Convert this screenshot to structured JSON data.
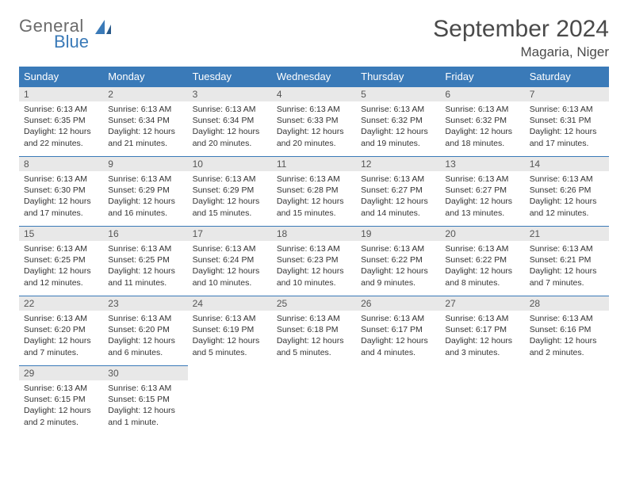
{
  "colors": {
    "header_bg": "#3a7ab8",
    "header_text": "#ffffff",
    "daynum_bg": "#e8e8e8",
    "row_border": "#3a7ab8",
    "logo_gray": "#6b6b6b",
    "logo_blue": "#3a7ab8",
    "text": "#333333"
  },
  "logo": {
    "part1": "General",
    "part2": "Blue"
  },
  "title": "September 2024",
  "location": "Magaria, Niger",
  "weekdays": [
    "Sunday",
    "Monday",
    "Tuesday",
    "Wednesday",
    "Thursday",
    "Friday",
    "Saturday"
  ],
  "weeks": [
    [
      {
        "n": "1",
        "sr": "Sunrise: 6:13 AM",
        "ss": "Sunset: 6:35 PM",
        "d1": "Daylight: 12 hours",
        "d2": "and 22 minutes."
      },
      {
        "n": "2",
        "sr": "Sunrise: 6:13 AM",
        "ss": "Sunset: 6:34 PM",
        "d1": "Daylight: 12 hours",
        "d2": "and 21 minutes."
      },
      {
        "n": "3",
        "sr": "Sunrise: 6:13 AM",
        "ss": "Sunset: 6:34 PM",
        "d1": "Daylight: 12 hours",
        "d2": "and 20 minutes."
      },
      {
        "n": "4",
        "sr": "Sunrise: 6:13 AM",
        "ss": "Sunset: 6:33 PM",
        "d1": "Daylight: 12 hours",
        "d2": "and 20 minutes."
      },
      {
        "n": "5",
        "sr": "Sunrise: 6:13 AM",
        "ss": "Sunset: 6:32 PM",
        "d1": "Daylight: 12 hours",
        "d2": "and 19 minutes."
      },
      {
        "n": "6",
        "sr": "Sunrise: 6:13 AM",
        "ss": "Sunset: 6:32 PM",
        "d1": "Daylight: 12 hours",
        "d2": "and 18 minutes."
      },
      {
        "n": "7",
        "sr": "Sunrise: 6:13 AM",
        "ss": "Sunset: 6:31 PM",
        "d1": "Daylight: 12 hours",
        "d2": "and 17 minutes."
      }
    ],
    [
      {
        "n": "8",
        "sr": "Sunrise: 6:13 AM",
        "ss": "Sunset: 6:30 PM",
        "d1": "Daylight: 12 hours",
        "d2": "and 17 minutes."
      },
      {
        "n": "9",
        "sr": "Sunrise: 6:13 AM",
        "ss": "Sunset: 6:29 PM",
        "d1": "Daylight: 12 hours",
        "d2": "and 16 minutes."
      },
      {
        "n": "10",
        "sr": "Sunrise: 6:13 AM",
        "ss": "Sunset: 6:29 PM",
        "d1": "Daylight: 12 hours",
        "d2": "and 15 minutes."
      },
      {
        "n": "11",
        "sr": "Sunrise: 6:13 AM",
        "ss": "Sunset: 6:28 PM",
        "d1": "Daylight: 12 hours",
        "d2": "and 15 minutes."
      },
      {
        "n": "12",
        "sr": "Sunrise: 6:13 AM",
        "ss": "Sunset: 6:27 PM",
        "d1": "Daylight: 12 hours",
        "d2": "and 14 minutes."
      },
      {
        "n": "13",
        "sr": "Sunrise: 6:13 AM",
        "ss": "Sunset: 6:27 PM",
        "d1": "Daylight: 12 hours",
        "d2": "and 13 minutes."
      },
      {
        "n": "14",
        "sr": "Sunrise: 6:13 AM",
        "ss": "Sunset: 6:26 PM",
        "d1": "Daylight: 12 hours",
        "d2": "and 12 minutes."
      }
    ],
    [
      {
        "n": "15",
        "sr": "Sunrise: 6:13 AM",
        "ss": "Sunset: 6:25 PM",
        "d1": "Daylight: 12 hours",
        "d2": "and 12 minutes."
      },
      {
        "n": "16",
        "sr": "Sunrise: 6:13 AM",
        "ss": "Sunset: 6:25 PM",
        "d1": "Daylight: 12 hours",
        "d2": "and 11 minutes."
      },
      {
        "n": "17",
        "sr": "Sunrise: 6:13 AM",
        "ss": "Sunset: 6:24 PM",
        "d1": "Daylight: 12 hours",
        "d2": "and 10 minutes."
      },
      {
        "n": "18",
        "sr": "Sunrise: 6:13 AM",
        "ss": "Sunset: 6:23 PM",
        "d1": "Daylight: 12 hours",
        "d2": "and 10 minutes."
      },
      {
        "n": "19",
        "sr": "Sunrise: 6:13 AM",
        "ss": "Sunset: 6:22 PM",
        "d1": "Daylight: 12 hours",
        "d2": "and 9 minutes."
      },
      {
        "n": "20",
        "sr": "Sunrise: 6:13 AM",
        "ss": "Sunset: 6:22 PM",
        "d1": "Daylight: 12 hours",
        "d2": "and 8 minutes."
      },
      {
        "n": "21",
        "sr": "Sunrise: 6:13 AM",
        "ss": "Sunset: 6:21 PM",
        "d1": "Daylight: 12 hours",
        "d2": "and 7 minutes."
      }
    ],
    [
      {
        "n": "22",
        "sr": "Sunrise: 6:13 AM",
        "ss": "Sunset: 6:20 PM",
        "d1": "Daylight: 12 hours",
        "d2": "and 7 minutes."
      },
      {
        "n": "23",
        "sr": "Sunrise: 6:13 AM",
        "ss": "Sunset: 6:20 PM",
        "d1": "Daylight: 12 hours",
        "d2": "and 6 minutes."
      },
      {
        "n": "24",
        "sr": "Sunrise: 6:13 AM",
        "ss": "Sunset: 6:19 PM",
        "d1": "Daylight: 12 hours",
        "d2": "and 5 minutes."
      },
      {
        "n": "25",
        "sr": "Sunrise: 6:13 AM",
        "ss": "Sunset: 6:18 PM",
        "d1": "Daylight: 12 hours",
        "d2": "and 5 minutes."
      },
      {
        "n": "26",
        "sr": "Sunrise: 6:13 AM",
        "ss": "Sunset: 6:17 PM",
        "d1": "Daylight: 12 hours",
        "d2": "and 4 minutes."
      },
      {
        "n": "27",
        "sr": "Sunrise: 6:13 AM",
        "ss": "Sunset: 6:17 PM",
        "d1": "Daylight: 12 hours",
        "d2": "and 3 minutes."
      },
      {
        "n": "28",
        "sr": "Sunrise: 6:13 AM",
        "ss": "Sunset: 6:16 PM",
        "d1": "Daylight: 12 hours",
        "d2": "and 2 minutes."
      }
    ],
    [
      {
        "n": "29",
        "sr": "Sunrise: 6:13 AM",
        "ss": "Sunset: 6:15 PM",
        "d1": "Daylight: 12 hours",
        "d2": "and 2 minutes."
      },
      {
        "n": "30",
        "sr": "Sunrise: 6:13 AM",
        "ss": "Sunset: 6:15 PM",
        "d1": "Daylight: 12 hours",
        "d2": "and 1 minute."
      },
      null,
      null,
      null,
      null,
      null
    ]
  ]
}
